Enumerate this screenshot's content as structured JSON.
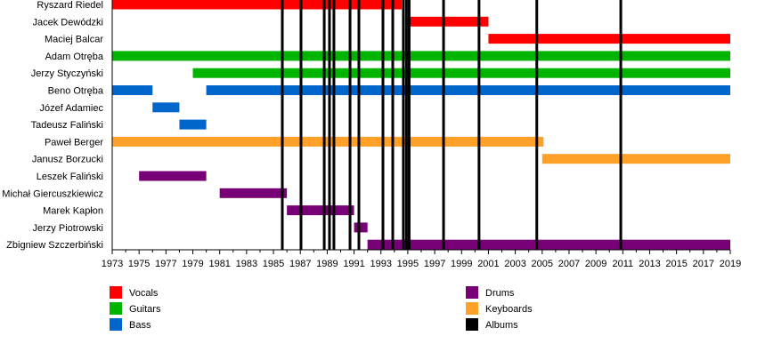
{
  "chart_data": {
    "type": "timeline",
    "title": "",
    "xlim": [
      1973,
      2019
    ],
    "tick_labels": [
      "1973",
      "1975",
      "1977",
      "1979",
      "1981",
      "1983",
      "1985",
      "1987",
      "1989",
      "1991",
      "1993",
      "1995",
      "1997",
      "1999",
      "2001",
      "2003",
      "2005",
      "2007",
      "2009",
      "2011",
      "2013",
      "2015",
      "2017",
      "2019"
    ],
    "roles": [
      {
        "name": "Vocals",
        "color": "#ff0000"
      },
      {
        "name": "Guitars",
        "color": "#00b400"
      },
      {
        "name": "Bass",
        "color": "#0066cc"
      },
      {
        "name": "Drums",
        "color": "#770077"
      },
      {
        "name": "Keyboards",
        "color": "#ffa028"
      },
      {
        "name": "Albums",
        "color": "#000000"
      }
    ],
    "members": [
      {
        "name": "Ryszard Riedel",
        "periods": [
          {
            "role": "Vocals",
            "start": 1973,
            "end": 1994.55
          }
        ]
      },
      {
        "name": "Jacek Dewódzki",
        "periods": [
          {
            "role": "Vocals",
            "start": 1995,
            "end": 2001
          }
        ]
      },
      {
        "name": "Maciej Balcar",
        "periods": [
          {
            "role": "Vocals",
            "start": 2001,
            "end": 2019
          }
        ]
      },
      {
        "name": "Adam Otręba",
        "periods": [
          {
            "role": "Guitars",
            "start": 1973,
            "end": 2019
          }
        ]
      },
      {
        "name": "Jerzy Styczyński",
        "periods": [
          {
            "role": "Guitars",
            "start": 1979,
            "end": 2019
          }
        ]
      },
      {
        "name": "Beno Otręba",
        "periods": [
          {
            "role": "Bass",
            "start": 1973,
            "end": 1976
          },
          {
            "role": "Bass",
            "start": 1980,
            "end": 2019
          }
        ]
      },
      {
        "name": "Józef Adamiec",
        "periods": [
          {
            "role": "Bass",
            "start": 1976,
            "end": 1978
          }
        ]
      },
      {
        "name": "Tadeusz Faliński",
        "periods": [
          {
            "role": "Bass",
            "start": 1978,
            "end": 1980
          }
        ]
      },
      {
        "name": "Paweł Berger",
        "periods": [
          {
            "role": "Keyboards",
            "start": 1973,
            "end": 2005.1
          }
        ]
      },
      {
        "name": "Janusz Borzucki",
        "periods": [
          {
            "role": "Keyboards",
            "start": 2005,
            "end": 2019
          }
        ]
      },
      {
        "name": "Leszek Faliński",
        "periods": [
          {
            "role": "Drums",
            "start": 1975,
            "end": 1980
          }
        ]
      },
      {
        "name": "Michał Giercuszkiewicz",
        "periods": [
          {
            "role": "Drums",
            "start": 1981,
            "end": 1986
          }
        ]
      },
      {
        "name": "Marek Kapłon",
        "periods": [
          {
            "role": "Drums",
            "start": 1986,
            "end": 1991
          }
        ]
      },
      {
        "name": "Jerzy Piotrowski",
        "periods": [
          {
            "role": "Drums",
            "start": 1991,
            "end": 1992
          }
        ]
      },
      {
        "name": "Zbigniew Szczerbiński",
        "periods": [
          {
            "role": "Drums",
            "start": 1992,
            "end": 2019
          }
        ]
      }
    ],
    "albums": [
      1985.66,
      1987.05,
      1988.78,
      1989.17,
      1989.5,
      1990.7,
      1991.36,
      1993.15,
      1993.88,
      1994.67,
      1994.9,
      1995.1,
      1997.66,
      2000.3,
      2004.6,
      2010.85
    ],
    "legend": {
      "placement": "bottom",
      "entries": [
        "Vocals",
        "Guitars",
        "Bass",
        "Drums",
        "Keyboards",
        "Albums"
      ]
    }
  }
}
